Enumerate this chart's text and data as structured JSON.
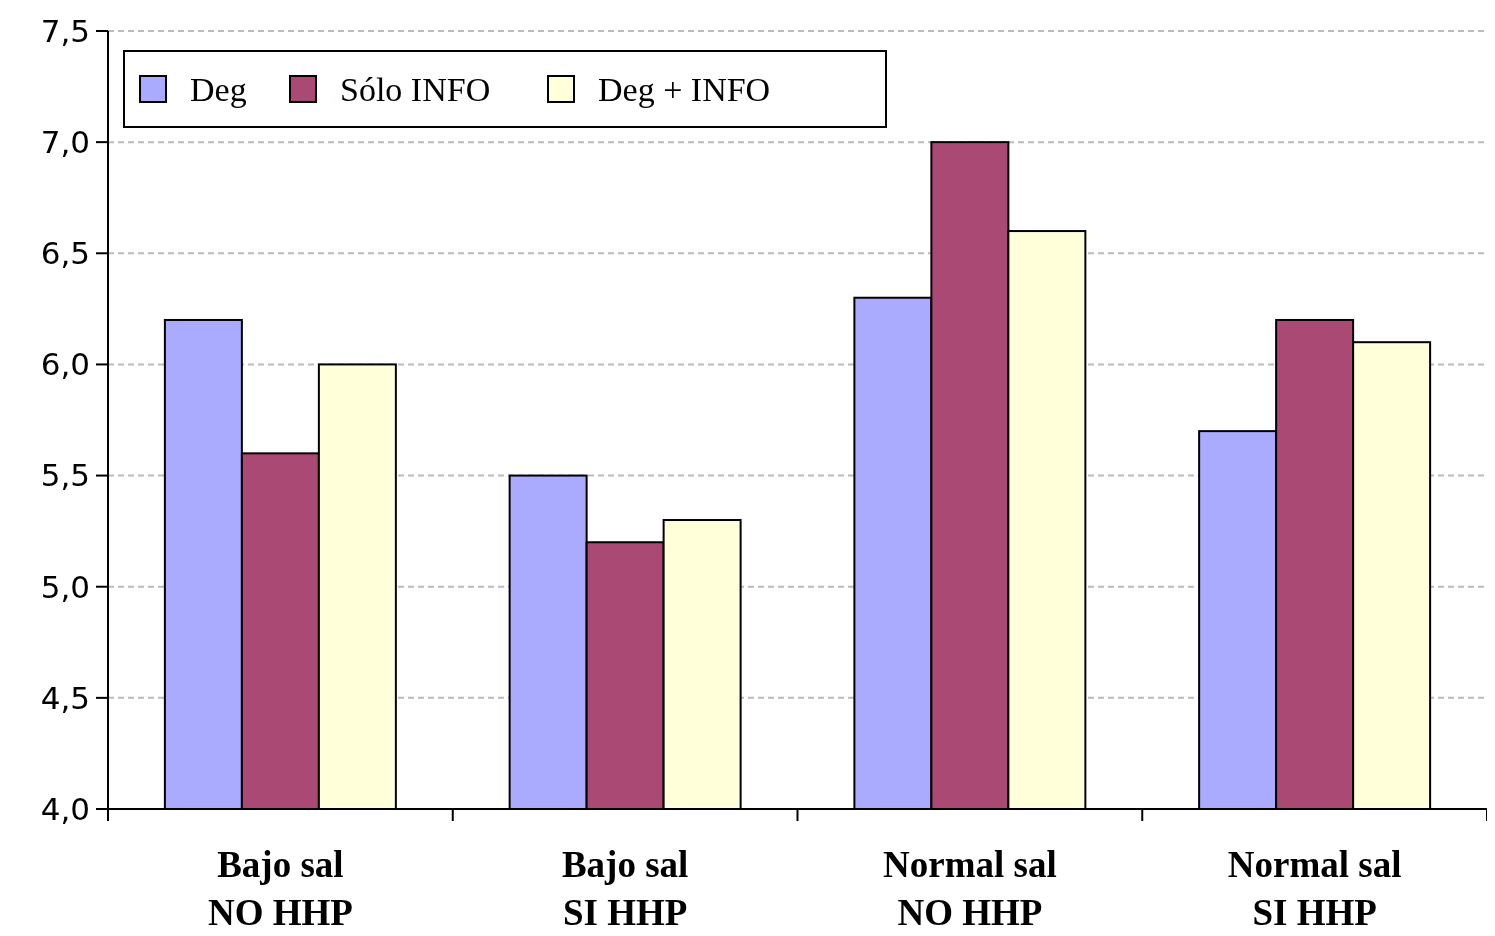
{
  "chart_data": {
    "type": "bar",
    "categories": [
      "Bajo sal\nNO HHP",
      "Bajo sal\nSI HHP",
      "Normal sal\nNO HHP",
      "Normal sal\nSI HHP"
    ],
    "series": [
      {
        "name": "Deg",
        "color": "#aaaaff",
        "values": [
          6.2,
          5.5,
          6.3,
          5.7
        ]
      },
      {
        "name": "Sólo INFO",
        "color": "#aa4a74",
        "values": [
          5.6,
          5.2,
          7.0,
          6.2
        ]
      },
      {
        "name": "Deg + INFO",
        "color": "#ffffd9",
        "values": [
          6.0,
          5.3,
          6.6,
          6.1
        ]
      }
    ],
    "ylim": [
      4,
      7.5
    ],
    "yticks": [
      {
        "value": 4,
        "label": "4,0"
      },
      {
        "value": 4.5,
        "label": "4,5"
      },
      {
        "value": 5,
        "label": "5,0"
      },
      {
        "value": 5.5,
        "label": "5,5"
      },
      {
        "value": 6,
        "label": "6,0"
      },
      {
        "value": 6.5,
        "label": "6,5"
      },
      {
        "value": 7,
        "label": "7,0"
      },
      {
        "value": 7.5,
        "label": "7,5"
      }
    ],
    "grid": "y",
    "legend": "top left"
  }
}
